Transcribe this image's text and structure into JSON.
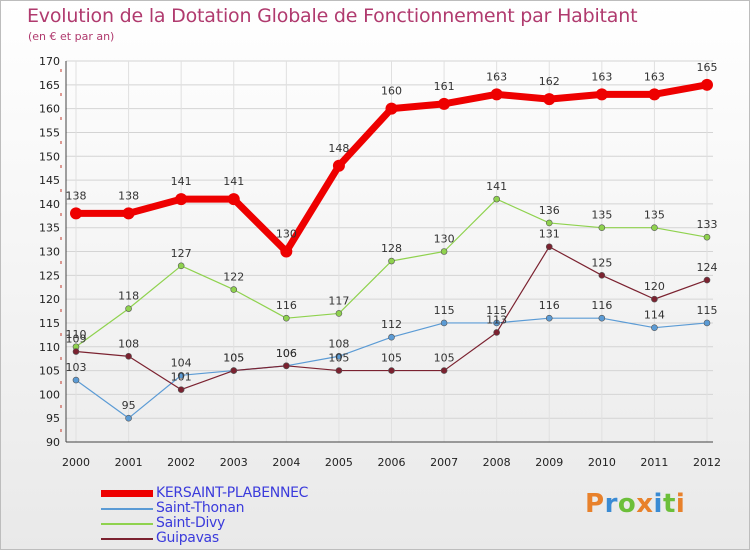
{
  "header": {
    "title": "Evolution de la Dotation Globale de Fonctionnement par Habitant",
    "subtitle": "(en € et par an)"
  },
  "logo": {
    "text": "Proxiti",
    "colors": [
      "#e8812b",
      "#3a8bd4",
      "#6cbf3a",
      "#e8812b",
      "#3a8bd4",
      "#6cbf3a",
      "#e8812b"
    ]
  },
  "chart_data": {
    "type": "line",
    "title": "Evolution de la Dotation Globale de Fonctionnement par Habitant",
    "subtitle": "(en € et par an)",
    "xlabel": "",
    "ylabel": "",
    "x": [
      "2000",
      "2001",
      "2002",
      "2003",
      "2004",
      "2005",
      "2006",
      "2007",
      "2008",
      "2009",
      "2010",
      "2011",
      "2012"
    ],
    "ylim": [
      90,
      170
    ],
    "yticks": [
      90,
      95,
      100,
      105,
      110,
      115,
      120,
      125,
      130,
      135,
      140,
      145,
      150,
      155,
      160,
      165,
      170
    ],
    "grid": true,
    "legend_position": "bottom-left",
    "series": [
      {
        "name": "KERSAINT-PLABENNEC",
        "color": "#ee0000",
        "values": [
          138,
          138,
          141,
          141,
          130,
          148,
          160,
          161,
          163,
          162,
          163,
          163,
          165
        ]
      },
      {
        "name": "Saint-Thonan",
        "color": "#5b9bd5",
        "values": [
          103,
          95,
          104,
          105,
          106,
          108,
          112,
          115,
          115,
          116,
          116,
          114,
          115
        ]
      },
      {
        "name": "Saint-Divy",
        "color": "#8fd24e",
        "values": [
          110,
          118,
          127,
          122,
          116,
          117,
          128,
          130,
          141,
          136,
          135,
          135,
          133
        ]
      },
      {
        "name": "Guipavas",
        "color": "#7b2230",
        "values": [
          109,
          108,
          101,
          105,
          106,
          105,
          105,
          105,
          113,
          131,
          125,
          120,
          124
        ]
      }
    ]
  }
}
